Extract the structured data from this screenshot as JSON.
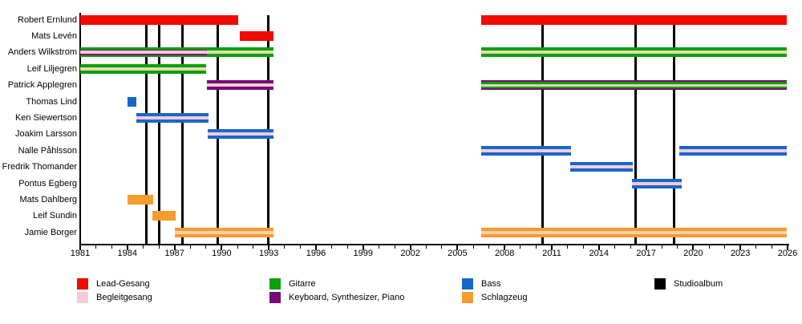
{
  "chart_data": {
    "type": "timeline",
    "title": "",
    "x_axis": {
      "start": 1981,
      "end": 2026,
      "major_step": 3,
      "minor_step": 1,
      "tick_labels": [
        "1981",
        "1984",
        "1987",
        "1990",
        "1993",
        "1996",
        "1999",
        "2002",
        "2005",
        "2008",
        "2011",
        "2014",
        "2017",
        "2020",
        "2023",
        "2026"
      ]
    },
    "palette": {
      "red": "#f00b00",
      "green": "#0ca00c",
      "blue": "#1668c8",
      "orange": "#f89b2d",
      "purple": "#760b76",
      "pink": "#f6cbd5",
      "tan": "#e7d8ae",
      "cream": "#dcd7b4",
      "peach": "#fbceb4",
      "black": "#000000"
    },
    "patterns": {
      "lead": [
        {
          "c": "red",
          "f": 1
        }
      ],
      "bass": [
        {
          "c": "blue",
          "f": 1
        }
      ],
      "drums": [
        {
          "c": "orange",
          "f": 1
        }
      ],
      "guitar_keys_bv": [
        {
          "c": "green",
          "f": 5
        },
        {
          "c": "purple",
          "f": 3
        },
        {
          "c": "pink",
          "f": 8
        },
        {
          "c": "purple",
          "f": 3
        },
        {
          "c": "green",
          "f": 5
        }
      ],
      "guitar_bv": [
        {
          "c": "green",
          "f": 4
        },
        {
          "c": "tan",
          "f": 4
        },
        {
          "c": "green",
          "f": 4
        }
      ],
      "keys_bv": [
        {
          "c": "purple",
          "f": 4
        },
        {
          "c": "pink",
          "f": 4
        },
        {
          "c": "purple",
          "f": 4
        }
      ],
      "keys_guitar_bv": [
        {
          "c": "purple",
          "f": 2
        },
        {
          "c": "green",
          "f": 2.5
        },
        {
          "c": "cream",
          "f": 3
        },
        {
          "c": "green",
          "f": 2.5
        },
        {
          "c": "purple",
          "f": 2
        }
      ],
      "bass_bv": [
        {
          "c": "blue",
          "f": 4
        },
        {
          "c": "pink",
          "f": 4
        },
        {
          "c": "blue",
          "f": 4
        }
      ],
      "drums_bv": [
        {
          "c": "orange",
          "f": 4
        },
        {
          "c": "peach",
          "f": 4
        },
        {
          "c": "orange",
          "f": 4
        }
      ]
    },
    "members": [
      {
        "name": "Robert Ernlund",
        "segments": [
          {
            "from": 1981,
            "to": 1991.05,
            "pattern": "lead"
          },
          {
            "from": 2006.5,
            "to": 2025.95,
            "pattern": "lead"
          }
        ]
      },
      {
        "name": "Mats Levén",
        "segments": [
          {
            "from": 1991.15,
            "to": 1993.3,
            "pattern": "lead"
          }
        ]
      },
      {
        "name": "Anders Wilkstrom",
        "segments": [
          {
            "from": 1981,
            "to": 1989.05,
            "pattern": "guitar_keys_bv"
          },
          {
            "from": 1989.05,
            "to": 1993.3,
            "pattern": "guitar_bv"
          },
          {
            "from": 2006.5,
            "to": 2025.95,
            "pattern": "guitar_bv"
          }
        ]
      },
      {
        "name": "Leif Liljegren",
        "segments": [
          {
            "from": 1981,
            "to": 1989.0,
            "pattern": "guitar_bv"
          }
        ]
      },
      {
        "name": "Patrick Applegren",
        "segments": [
          {
            "from": 1989.05,
            "to": 1993.3,
            "pattern": "keys_bv"
          },
          {
            "from": 2006.5,
            "to": 2025.95,
            "pattern": "keys_guitar_bv"
          }
        ]
      },
      {
        "name": "Thomas Lind",
        "segments": [
          {
            "from": 1984.0,
            "to": 1984.55,
            "pattern": "bass"
          }
        ]
      },
      {
        "name": "Ken Siewertson",
        "segments": [
          {
            "from": 1984.55,
            "to": 1989.15,
            "pattern": "bass_bv"
          }
        ]
      },
      {
        "name": "Joakim Larsson",
        "segments": [
          {
            "from": 1989.1,
            "to": 1993.3,
            "pattern": "bass_bv"
          }
        ]
      },
      {
        "name": "Nalle Påhlsson",
        "segments": [
          {
            "from": 2006.5,
            "to": 2012.2,
            "pattern": "bass_bv"
          },
          {
            "from": 2019.1,
            "to": 2025.95,
            "pattern": "bass_bv"
          }
        ]
      },
      {
        "name": "Fredrik Thomander",
        "segments": [
          {
            "from": 2012.15,
            "to": 2016.15,
            "pattern": "bass_bv"
          }
        ]
      },
      {
        "name": "Pontus Egberg",
        "segments": [
          {
            "from": 2016.1,
            "to": 2019.25,
            "pattern": "bass_bv"
          }
        ]
      },
      {
        "name": "Mats Dahlberg",
        "segments": [
          {
            "from": 1984.0,
            "to": 1985.65,
            "pattern": "drums"
          }
        ]
      },
      {
        "name": "Leif Sundin",
        "segments": [
          {
            "from": 1985.6,
            "to": 1987.05,
            "pattern": "drums"
          }
        ]
      },
      {
        "name": "Jamie Borger",
        "segments": [
          {
            "from": 1987.0,
            "to": 1993.3,
            "pattern": "drums_bv"
          },
          {
            "from": 2006.5,
            "to": 2025.95,
            "pattern": "drums_bv"
          }
        ]
      }
    ],
    "albums": {
      "label": "Studioalbum",
      "years": [
        1985.2,
        1986.03,
        1987.48,
        1989.75,
        1992.97,
        2010.4,
        2016.35,
        2018.8
      ]
    },
    "legend": [
      {
        "label": "Lead-Gesang",
        "color": "red",
        "col": 0,
        "row": 0
      },
      {
        "label": "Begleitgesang",
        "color": "pink",
        "col": 0,
        "row": 1
      },
      {
        "label": "Gitarre",
        "color": "green",
        "col": 1,
        "row": 0
      },
      {
        "label": "Keyboard, Synthesizer, Piano",
        "color": "purple",
        "col": 1,
        "row": 1
      },
      {
        "label": "Bass",
        "color": "blue",
        "col": 2,
        "row": 0
      },
      {
        "label": "Schlagzeug",
        "color": "orange",
        "col": 2,
        "row": 1
      },
      {
        "label": "Studioalbum",
        "color": "black",
        "col": 3,
        "row": 0
      }
    ]
  }
}
